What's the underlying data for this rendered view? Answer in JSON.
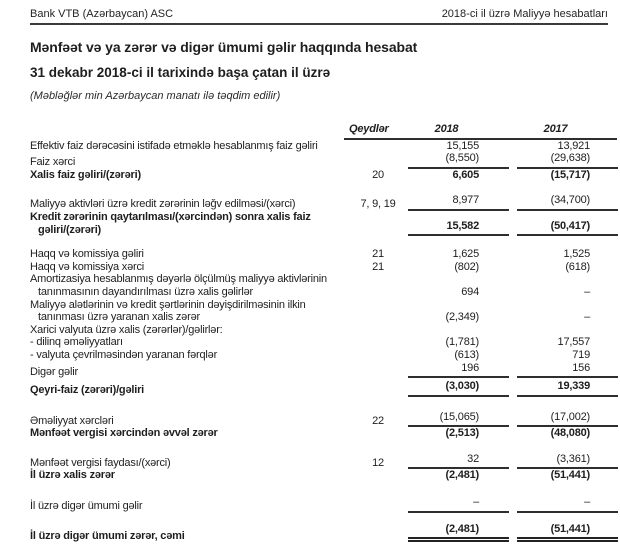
{
  "page": {
    "header_left": "Bank VTB (Azərbaycan) ASC",
    "header_right": "2018-ci il üzrə Maliyyə hesabatları",
    "title_line1": "Mənfəət və ya zərər və digər ümumi gəlir haqqında hesabat",
    "title_line2": "31 dekabr 2018-ci il tarixində başa çatan il üzrə",
    "amounts_note": "(Məbləğlər min Azərbaycan manatı ilə təqdim edilir)"
  },
  "colors": {
    "text": "#1e1e1e",
    "rule": "#2e2e2e",
    "background": "#ffffff"
  },
  "table": {
    "columns": {
      "notes": "Qeydlər",
      "y2018": "2018",
      "y2017": "2017"
    },
    "rows": [
      {
        "label": "Effektiv faiz dərəcəsini istifadə etməklə hesablanmış faiz gəliri",
        "notes": "",
        "v2018": "15,155",
        "v2017": "13,921",
        "bold": false,
        "ul": "none",
        "gap": 0
      },
      {
        "label": "Faiz xərci",
        "notes": "",
        "v2018": "(8,550)",
        "v2017": "(29,638)",
        "bold": false,
        "ul": "single",
        "gap": 0
      },
      {
        "label": "Xalis faiz gəliri/(zərəri)",
        "notes": "20",
        "v2018": "6,605",
        "v2017": "(15,717)",
        "bold": true,
        "ul": "none",
        "gap": 0
      },
      {
        "label": "Maliyyə aktivləri üzrə kredit zərərinin ləğv edilməsi/(xərci)",
        "notes": "7, 9, 19",
        "v2018": "8,977",
        "v2017": "(34,700)",
        "bold": false,
        "ul": "single",
        "gap": 13
      },
      {
        "label": "Kredit zərərinin qaytarılması/(xərcindən) sonra xalis faiz\ngəliri/(zərəri)",
        "notes": "",
        "v2018": "15,582",
        "v2017": "(50,417)",
        "bold": true,
        "ul": "single",
        "gap": 0
      },
      {
        "label": "Haqq və komissiya gəliri",
        "notes": "21",
        "v2018": "1,625",
        "v2017": "1,525",
        "bold": false,
        "ul": "none",
        "gap": 12
      },
      {
        "label": "Haqq və komissiya xərci",
        "notes": "21",
        "v2018": "(802)",
        "v2017": "(618)",
        "bold": false,
        "ul": "none",
        "gap": 0
      },
      {
        "label": "Amortizasiya hesablanmış dəyərlə ölçülmüş maliyyə aktivlərinin\ntanınmasının dayandırılması üzrə xalis gəlirlər",
        "notes": "",
        "v2018": "694",
        "v2017": "–",
        "bold": false,
        "ul": "none",
        "gap": 0
      },
      {
        "label": "Maliyyə alətlərinin və kredit şərtlərinin dəyişdirilməsinin ilkin\ntanınması üzrə yaranan xalis zərər",
        "notes": "",
        "v2018": "(2,349)",
        "v2017": "–",
        "bold": false,
        "ul": "none",
        "gap": 0
      },
      {
        "label": "Xarici valyuta üzrə xalis (zərərlər)/gəlirlər:",
        "notes": "",
        "v2018": "",
        "v2017": "",
        "bold": false,
        "ul": "none",
        "gap": 0
      },
      {
        "label": "- dilinq əməliyyatları",
        "notes": "",
        "v2018": "(1,781)",
        "v2017": "17,557",
        "bold": false,
        "ul": "none",
        "gap": 0
      },
      {
        "label": "- valyuta çevrilməsindən yaranan fərqlər",
        "notes": "",
        "v2018": "(613)",
        "v2017": "719",
        "bold": false,
        "ul": "none",
        "gap": 0
      },
      {
        "label": "Digər gəlir",
        "notes": "",
        "v2018": "196",
        "v2017": "156",
        "bold": false,
        "ul": "single",
        "gap": 0
      },
      {
        "label": "Qeyri-faiz (zərəri)/gəliri",
        "notes": "",
        "v2018": "(3,030)",
        "v2017": "19,339",
        "bold": true,
        "ul": "single",
        "gap": 2
      },
      {
        "label": "Əməliyyat xərcləri",
        "notes": "22",
        "v2018": "(15,065)",
        "v2017": "(17,002)",
        "bold": false,
        "ul": "single",
        "gap": 14
      },
      {
        "label": "Mənfəət vergisi xərcindən əvvəl zərər",
        "notes": "",
        "v2018": "(2,513)",
        "v2017": "(48,080)",
        "bold": true,
        "ul": "none",
        "gap": 0
      },
      {
        "label": "Mənfəət vergisi faydası/(xərci)",
        "notes": "12",
        "v2018": "32",
        "v2017": "(3,361)",
        "bold": false,
        "ul": "single",
        "gap": 13
      },
      {
        "label": "İl üzrə xalis zərər",
        "notes": "",
        "v2018": "(2,481)",
        "v2017": "(51,441)",
        "bold": true,
        "ul": "none",
        "gap": 0
      },
      {
        "label": "İl üzrə digər ümumi gəlir",
        "notes": "",
        "v2018": "–",
        "v2017": "–",
        "bold": false,
        "ul": "single",
        "gap": 14
      },
      {
        "label": "İl üzrə digər ümumi zərər, cəmi",
        "notes": "",
        "v2018": "(2,481)",
        "v2017": "(51,441)",
        "bold": true,
        "ul": "double",
        "gap": 10
      }
    ]
  }
}
